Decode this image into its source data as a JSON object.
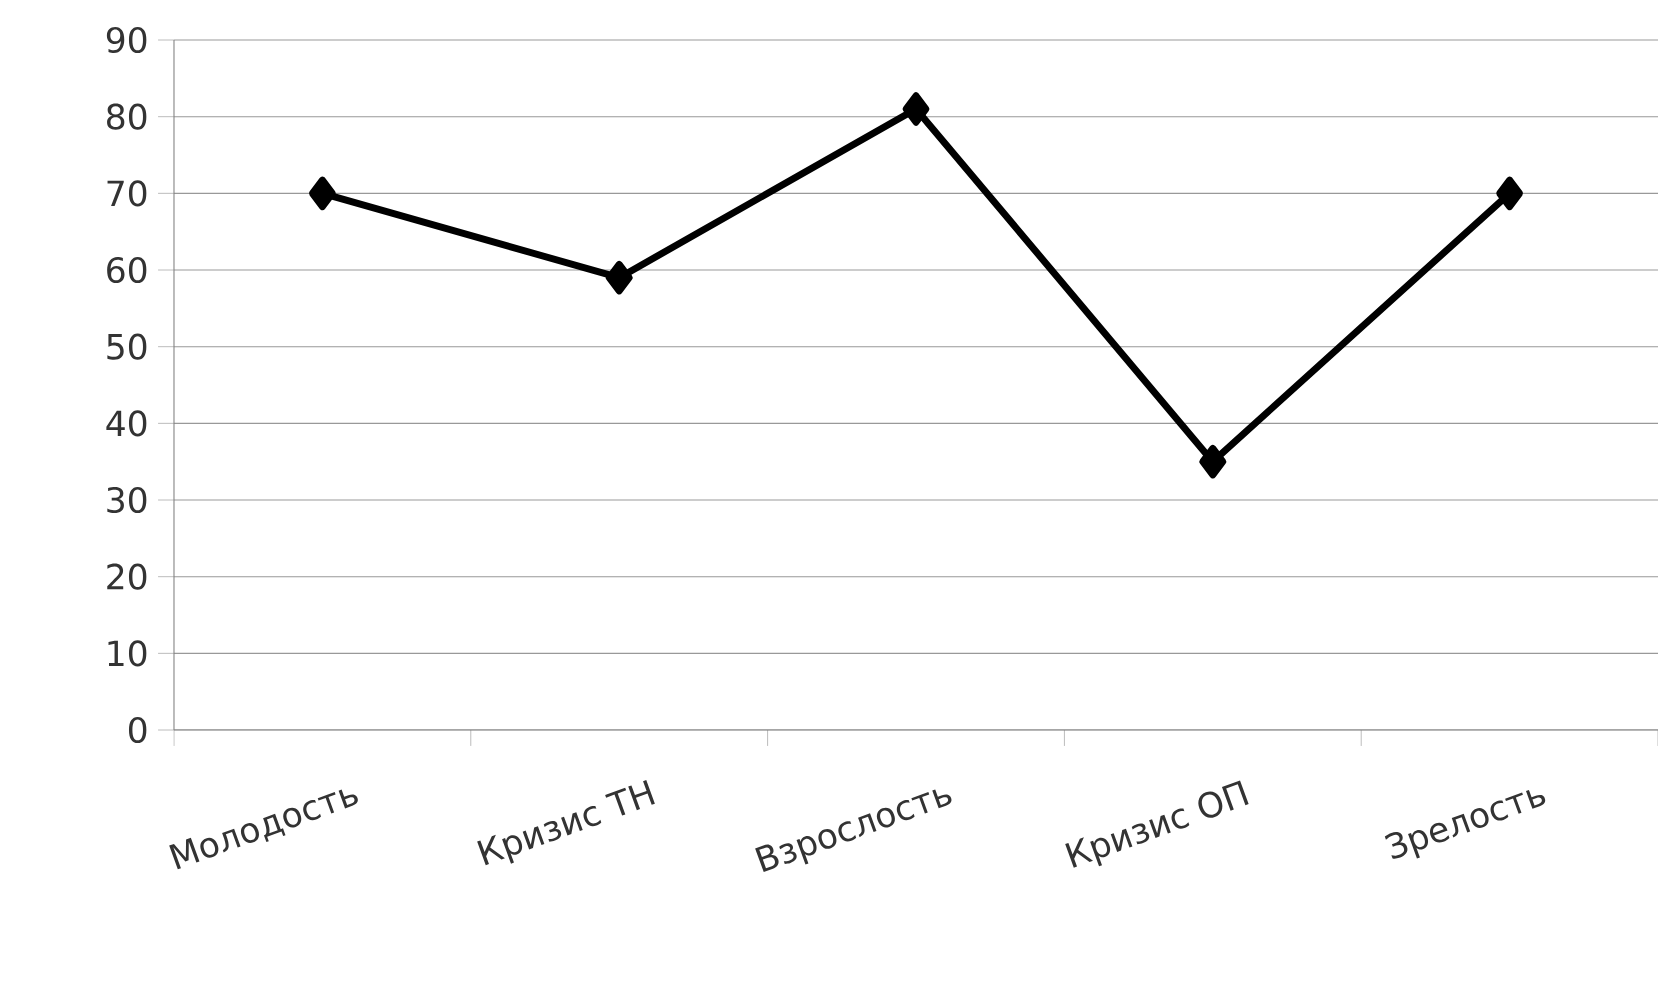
{
  "chart_data": {
    "type": "line",
    "categories": [
      "Молодость",
      "Кризис ТН",
      "Взрослость",
      "Кризис ОП",
      "Зрелость"
    ],
    "series": [
      {
        "color": "#000000",
        "values": [
          70,
          59,
          81,
          35,
          70
        ]
      }
    ],
    "ylim": [
      0,
      90
    ],
    "yticks": [
      0,
      10,
      20,
      30,
      40,
      50,
      60,
      70,
      80,
      90
    ],
    "grid": "y",
    "marker": "diamond",
    "line_style": "solid"
  }
}
